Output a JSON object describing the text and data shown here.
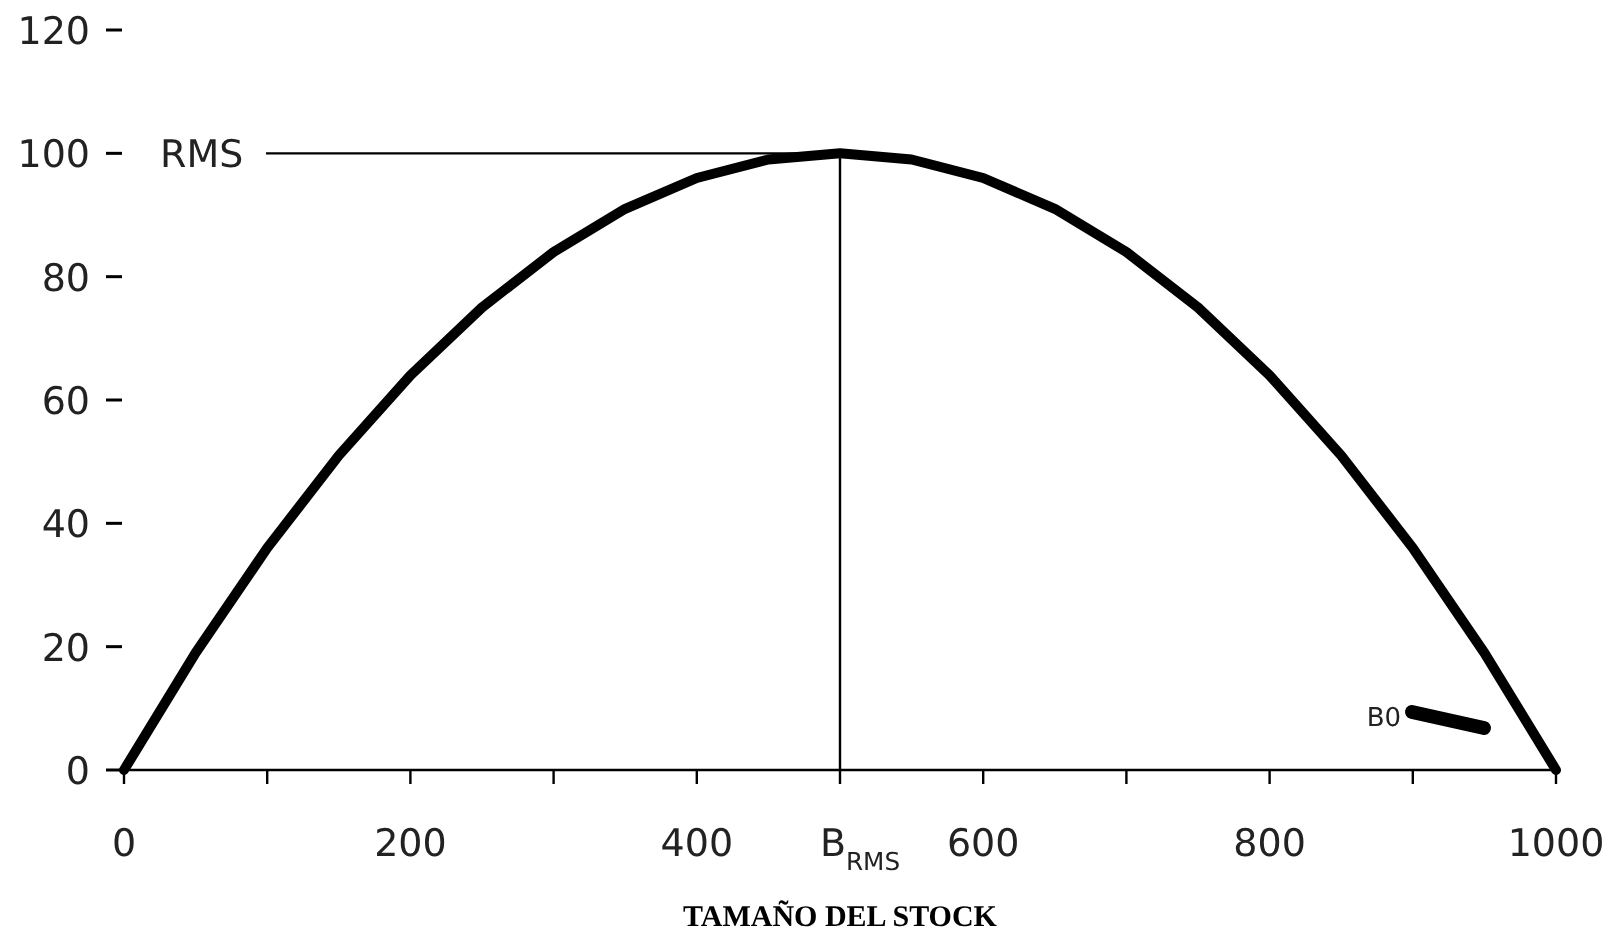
{
  "chart_data": {
    "type": "line",
    "xlabel": "TAMAÑO DEL STOCK",
    "x": [
      0,
      50,
      100,
      150,
      200,
      250,
      300,
      350,
      400,
      450,
      500,
      550,
      600,
      650,
      700,
      750,
      800,
      850,
      900,
      950,
      1000
    ],
    "series": [
      {
        "color": "#000000",
        "values": [
          0,
          19,
          36,
          51,
          64,
          75,
          84,
          91,
          96,
          99,
          100,
          99,
          96,
          91,
          84,
          75,
          64,
          51,
          36,
          19,
          0
        ]
      }
    ],
    "xlim": [
      0,
      1000
    ],
    "xticks": [
      0,
      {
        "value": 100,
        "label": null
      },
      200,
      {
        "value": 300,
        "label": null
      },
      400,
      600,
      {
        "value": 700,
        "label": null
      },
      800,
      {
        "value": 900,
        "label": null
      },
      1000
    ],
    "ylim": [
      0,
      120
    ],
    "yticks": [
      0,
      20,
      40,
      60,
      80,
      100,
      120
    ],
    "ref_lines": [
      {
        "axis": "y",
        "value": 100,
        "label": "RMS",
        "color": "#000000"
      },
      {
        "axis": "x",
        "value": 500,
        "label": "B$_{RMS}$",
        "color": "#000000"
      }
    ],
    "annotations": [
      "B0"
    ],
    "grid": false,
    "marker": "none",
    "line_style": "solid"
  }
}
